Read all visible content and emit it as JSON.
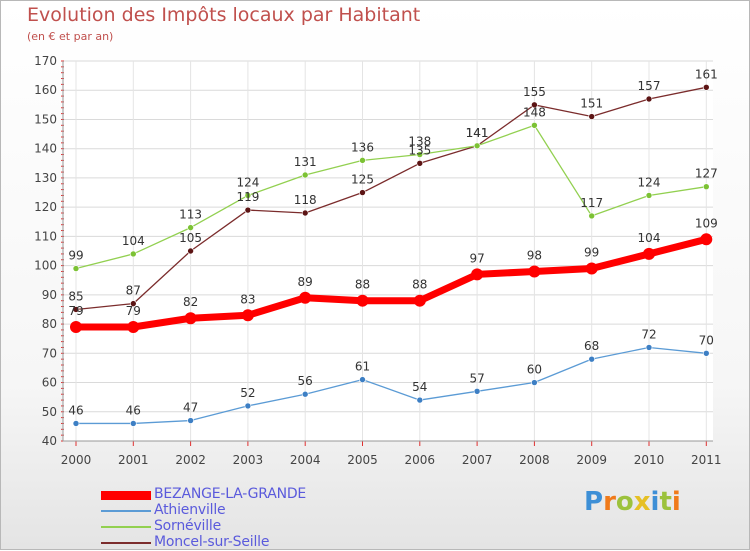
{
  "title": "Evolution des Impôts locaux par Habitant",
  "subtitle": "(en € et par an)",
  "logo": {
    "text": "Proxiti",
    "colors": [
      "#3d8fd6",
      "#f07a1a",
      "#9cc23c",
      "#e6c024",
      "#3d8fd6",
      "#9cc23c",
      "#f07a1a"
    ]
  },
  "chart_data": {
    "type": "line",
    "title": "Evolution des Impôts locaux par Habitant",
    "subtitle": "(en € et par an)",
    "xlabel": "",
    "ylabel": "",
    "categories": [
      "2000",
      "2001",
      "2002",
      "2003",
      "2004",
      "2005",
      "2006",
      "2007",
      "2008",
      "2009",
      "2010",
      "2011"
    ],
    "ylim": [
      40,
      170
    ],
    "yticks": [
      40,
      50,
      60,
      70,
      80,
      90,
      100,
      110,
      120,
      130,
      140,
      150,
      160,
      170
    ],
    "grid": true,
    "legend_position": "bottom-left",
    "series": [
      {
        "name": "BEZANGE-LA-GRANDE",
        "color": "#ff0000",
        "values": [
          79,
          79,
          82,
          83,
          89,
          88,
          88,
          97,
          98,
          99,
          104,
          109
        ]
      },
      {
        "name": "Athienville",
        "color": "#5b9bd5",
        "values": [
          46,
          46,
          47,
          52,
          56,
          61,
          54,
          57,
          60,
          68,
          72,
          70
        ]
      },
      {
        "name": "Sornéville",
        "color": "#92d050",
        "values": [
          99,
          104,
          113,
          124,
          131,
          136,
          138,
          141,
          148,
          117,
          124,
          127
        ]
      },
      {
        "name": "Moncel-sur-Seille",
        "color": "#7b2c2c",
        "values": [
          85,
          87,
          105,
          119,
          118,
          125,
          135,
          141,
          155,
          151,
          157,
          161
        ]
      }
    ]
  }
}
